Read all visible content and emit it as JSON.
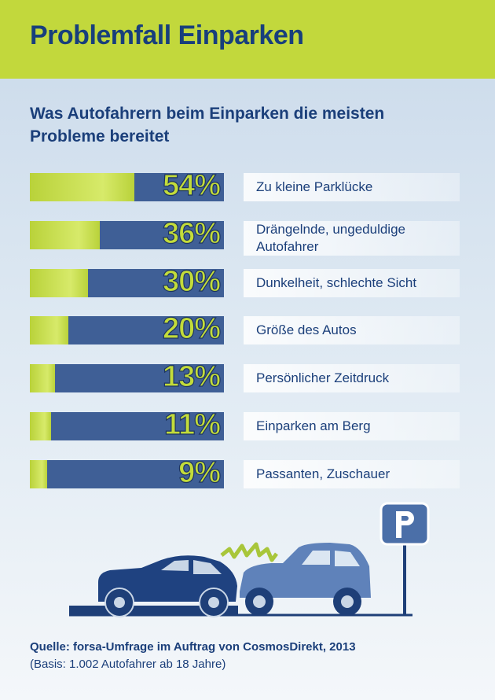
{
  "chart_data": {
    "type": "bar",
    "orientation": "horizontal",
    "title": "Problemfall Einparken",
    "subtitle": "Was Autofahrern beim Einparken die meisten Probleme bereitet",
    "categories": [
      "Zu kleine Parklücke",
      "Drängelnde, ungeduldige Autofahrer",
      "Dunkelheit, schlechte Sicht",
      "Größe des Autos",
      "Persönlicher Zeitdruck",
      "Einparken am Berg",
      "Passanten, Zuschauer"
    ],
    "values": [
      54,
      36,
      30,
      20,
      13,
      11,
      9
    ],
    "value_labels": [
      "54%",
      "36%",
      "30%",
      "20%",
      "13%",
      "11%",
      "9%"
    ],
    "xlim": [
      0,
      100
    ],
    "color": "#b9d23a",
    "track_color": "#3f5f96",
    "source": "Quelle: forsa-Umfrage im Auftrag von CosmosDirekt, 2013",
    "note": "(Basis: 1.002 Autofahrer ab 18 Jahre)"
  }
}
